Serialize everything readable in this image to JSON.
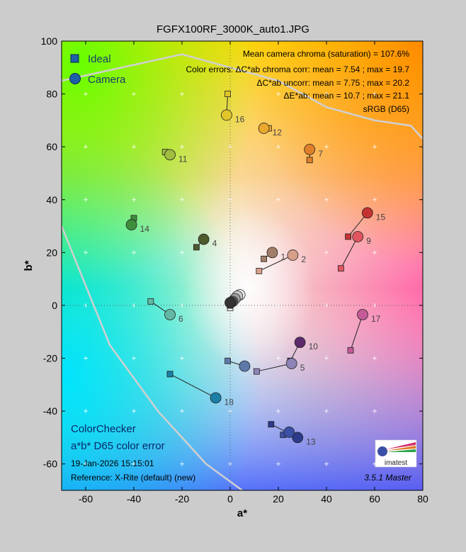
{
  "chart_data": {
    "type": "scatter",
    "title": "FGFX100RF_3000K_auto1.JPG",
    "xlabel": "a*",
    "ylabel": "b*",
    "xlim": [
      -70,
      80
    ],
    "ylim": [
      -70,
      100
    ],
    "xticks": [
      -60,
      -40,
      -20,
      0,
      20,
      40,
      60,
      80
    ],
    "yticks": [
      -60,
      -40,
      -20,
      0,
      20,
      40,
      60,
      80,
      100
    ],
    "grid": true,
    "legend_position": "top-left",
    "legend": {
      "ideal": "Ideal",
      "camera": "Camera"
    },
    "series": [
      {
        "name": "Ideal",
        "marker": "square"
      },
      {
        "name": "Camera",
        "marker": "circle"
      }
    ],
    "stats": [
      "Mean camera chroma (saturation) = 107.6%",
      "Color errors: ΔC*ab chroma corr:  mean = 7.54 ;  max = 19.7",
      "ΔC*ab uncorr:  mean = 7.75 ;  max = 20.2",
      "ΔE*ab:  mean = 10.7 ;  max = 21.1",
      "sRGB (D65)"
    ],
    "annotations": {
      "chart_name": "ColorChecker",
      "chart_subtitle": "a*b* D65 color error",
      "date": "19-Jan-2026 15:15:01",
      "reference": "Reference: X-Rite (default) (new)",
      "version": "3.5.1  Master",
      "logo": "imatest"
    },
    "patches": [
      {
        "id": "1",
        "label": "1",
        "ideal": [
          14,
          17.6
        ],
        "camera": [
          17.5,
          20
        ],
        "color": "#a27e6a"
      },
      {
        "id": "2",
        "label": "2",
        "ideal": [
          12,
          13
        ],
        "camera": [
          26,
          19
        ],
        "color": "#d79f8a"
      },
      {
        "id": "4",
        "label": "4",
        "ideal": [
          -14,
          22
        ],
        "camera": [
          -11,
          25
        ],
        "color": "#4d5a2c"
      },
      {
        "id": "6",
        "label": "6",
        "ideal": [
          -33,
          1.5
        ],
        "camera": [
          -25,
          -3.5
        ],
        "color": "#62b8a4"
      },
      {
        "id": "7",
        "label": "7",
        "ideal": [
          33,
          55
        ],
        "camera": [
          33,
          59
        ],
        "color": "#e07f2a"
      },
      {
        "id": "9",
        "label": "9",
        "ideal": [
          46,
          14
        ],
        "camera": [
          53,
          26
        ],
        "color": "#e0555f"
      },
      {
        "id": "10",
        "label": "10",
        "ideal": [
          25,
          -21
        ],
        "camera": [
          29,
          -14
        ],
        "color": "#5c2a6b"
      },
      {
        "id": "5",
        "label": "5",
        "ideal": [
          11,
          -25
        ],
        "camera": [
          25.5,
          -22
        ],
        "color": "#8e84b7"
      },
      {
        "id": "11",
        "label": "11",
        "ideal": [
          -27,
          58
        ],
        "camera": [
          -25,
          57
        ],
        "color": "#a0bd40"
      },
      {
        "id": "12",
        "label": "12",
        "ideal": [
          16,
          67
        ],
        "camera": [
          14,
          67
        ],
        "color": "#e9a72c"
      },
      {
        "id": "13",
        "label": "13",
        "ideal": [
          17,
          -45
        ],
        "camera": [
          28,
          -50
        ],
        "color": "#2c3a8c"
      },
      {
        "id": "13b",
        "label": "",
        "ideal": [
          22,
          -49
        ],
        "camera": [
          24.5,
          -48
        ],
        "color": "#3a4fa6"
      },
      {
        "id": "14",
        "label": "14",
        "ideal": [
          -40,
          33
        ],
        "camera": [
          -41,
          30.5
        ],
        "color": "#3f8e3c"
      },
      {
        "id": "15",
        "label": "15",
        "ideal": [
          49,
          26
        ],
        "camera": [
          57,
          35
        ],
        "color": "#c53232"
      },
      {
        "id": "16",
        "label": "16",
        "ideal": [
          -1,
          80
        ],
        "camera": [
          -1.5,
          72
        ],
        "color": "#e1c52a"
      },
      {
        "id": "17",
        "label": "17",
        "ideal": [
          50,
          -17
        ],
        "camera": [
          55,
          -3.5
        ],
        "color": "#c45a98"
      },
      {
        "id": "18",
        "label": "18",
        "ideal": [
          -25,
          -26
        ],
        "camera": [
          -6,
          -35
        ],
        "color": "#1b7fa5"
      },
      {
        "id": "3",
        "label": "",
        "ideal": [
          -1,
          -21
        ],
        "camera": [
          6,
          -23
        ],
        "color": "#5d7aa8"
      },
      {
        "id": "w19",
        "label": "",
        "ideal": [
          0,
          -1
        ],
        "camera": [
          4,
          4
        ],
        "color": "#f2f2f2"
      },
      {
        "id": "w20",
        "label": "",
        "ideal": [
          0,
          0
        ],
        "camera": [
          3,
          3.5
        ],
        "color": "#c8c8c8"
      },
      {
        "id": "w21",
        "label": "",
        "ideal": [
          0,
          0
        ],
        "camera": [
          2,
          2.5
        ],
        "color": "#a0a0a0"
      },
      {
        "id": "w22",
        "label": "",
        "ideal": [
          0,
          0
        ],
        "camera": [
          1,
          1.5
        ],
        "color": "#787878"
      },
      {
        "id": "w23",
        "label": "",
        "ideal": [
          0,
          0
        ],
        "camera": [
          0.5,
          1.2
        ],
        "color": "#555555"
      },
      {
        "id": "w24",
        "label": "",
        "ideal": [
          0,
          0
        ],
        "camera": [
          0,
          1
        ],
        "color": "#333333"
      }
    ],
    "srgb_boundary": [
      [
        -70,
        85
      ],
      [
        -20,
        95
      ],
      [
        20,
        85
      ],
      [
        40,
        75
      ],
      [
        60,
        70
      ],
      [
        75,
        68
      ],
      [
        80,
        63
      ]
    ],
    "srgb_boundary_lower": [
      [
        -70,
        30
      ],
      [
        -50,
        -15
      ],
      [
        -30,
        -40
      ],
      [
        -10,
        -60
      ],
      [
        5,
        -70
      ]
    ]
  }
}
